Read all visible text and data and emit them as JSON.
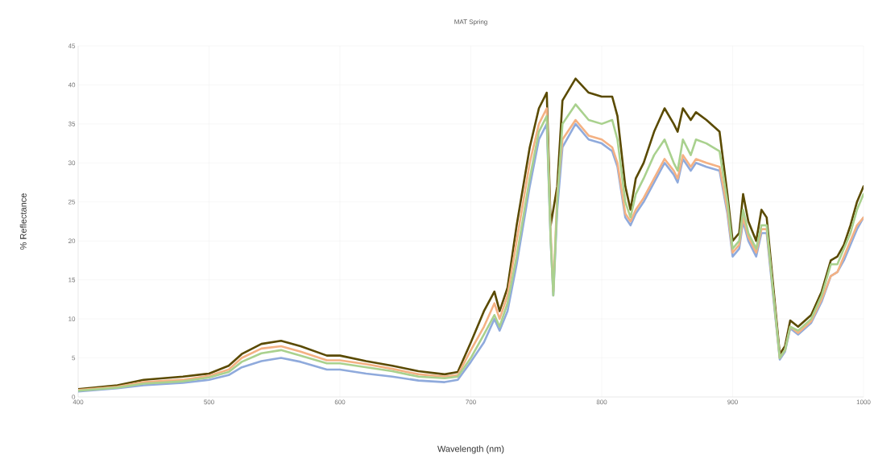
{
  "chart_data": {
    "type": "line",
    "title": "MAT Spring",
    "xlabel": "Wavelength (nm)",
    "ylabel": "% Reflectance",
    "x": [
      400,
      430,
      450,
      480,
      500,
      515,
      525,
      540,
      555,
      570,
      590,
      600,
      620,
      640,
      660,
      680,
      690,
      700,
      710,
      718,
      722,
      728,
      735,
      745,
      752,
      758,
      761,
      763,
      766,
      770,
      780,
      790,
      800,
      808,
      812,
      818,
      822,
      826,
      832,
      840,
      848,
      855,
      858,
      862,
      868,
      872,
      880,
      890,
      896,
      900,
      905,
      908,
      912,
      918,
      922,
      926,
      930,
      936,
      940,
      944,
      950,
      960,
      968,
      975,
      980,
      985,
      990,
      995,
      1000
    ],
    "series": [
      {
        "color": "#5a4a00",
        "values": [
          1.0,
          1.5,
          2.2,
          2.6,
          3.0,
          4.0,
          5.5,
          6.8,
          7.2,
          6.5,
          5.3,
          5.3,
          4.6,
          4.0,
          3.3,
          2.9,
          3.2,
          7,
          11,
          13.5,
          11,
          14,
          22,
          32,
          37,
          39,
          22,
          null,
          27,
          38,
          40.8,
          39,
          38.5,
          38.5,
          36,
          27,
          24,
          28,
          30,
          34,
          37,
          35,
          34,
          37,
          35.5,
          36.5,
          35.5,
          34,
          26,
          20,
          21,
          26,
          22.5,
          20,
          24,
          23,
          16,
          5.5,
          6.5,
          9.8,
          9,
          10.5,
          13.5,
          17.5,
          18,
          19.5,
          22,
          25,
          27
        ]
      },
      {
        "color": "#8faadc",
        "values": [
          0.7,
          1.1,
          1.5,
          1.8,
          2.2,
          2.8,
          3.8,
          4.6,
          5.0,
          4.5,
          3.5,
          3.5,
          3.0,
          2.6,
          2.1,
          1.9,
          2.2,
          4.5,
          7,
          10,
          8.5,
          11,
          17,
          27,
          33,
          35,
          20,
          13,
          24,
          32,
          35,
          33,
          32.5,
          31.5,
          29.5,
          23,
          22,
          23.5,
          25,
          27.5,
          30,
          28.5,
          27.5,
          30.5,
          29,
          30,
          29.5,
          29,
          23.5,
          18,
          19,
          22.5,
          20,
          18,
          21,
          21,
          14.5,
          4.8,
          5.8,
          8.8,
          8,
          9.5,
          12.2,
          15.5,
          16,
          17.5,
          19.5,
          21.5,
          23
        ]
      },
      {
        "color": "#f4b183",
        "values": [
          0.9,
          1.3,
          1.9,
          2.2,
          2.7,
          3.5,
          5.0,
          6.2,
          6.5,
          5.8,
          4.7,
          4.7,
          4.2,
          3.6,
          2.9,
          2.6,
          2.8,
          6,
          9,
          12,
          10,
          13,
          20,
          30,
          35,
          37,
          21,
          13.5,
          26,
          33,
          35.5,
          33.5,
          33,
          32,
          30,
          23.5,
          22.5,
          24,
          25.5,
          28,
          30.5,
          29,
          28,
          31,
          29.5,
          30.5,
          30,
          29.5,
          24,
          18.5,
          19.5,
          23,
          20.5,
          18.5,
          21.5,
          21.5,
          15,
          5,
          6,
          9,
          8.2,
          9.7,
          12.5,
          15.5,
          16,
          18,
          20,
          22,
          23
        ]
      },
      {
        "color": "#a9d18e",
        "values": [
          0.8,
          1.2,
          1.7,
          2.0,
          2.5,
          3.2,
          4.5,
          5.6,
          6.0,
          5.3,
          4.3,
          4.3,
          3.8,
          3.3,
          2.6,
          2.4,
          2.6,
          5,
          8,
          10.5,
          9,
          12,
          18,
          28,
          34,
          36,
          20,
          13,
          25,
          35,
          37.5,
          35.5,
          35,
          35.5,
          33,
          25,
          23,
          26,
          28,
          31,
          33,
          30,
          29,
          33,
          31,
          33,
          32.5,
          31.5,
          25,
          19,
          20,
          24,
          21,
          19,
          22,
          22,
          15,
          5,
          6,
          9,
          8.5,
          10,
          13,
          17,
          17,
          19,
          21,
          24,
          26
        ]
      }
    ],
    "xlim": [
      400,
      1000
    ],
    "xticks": [
      400,
      500,
      600,
      700,
      800,
      900,
      1000
    ],
    "ylim": [
      0,
      45
    ],
    "yticks": [
      0,
      5,
      10,
      15,
      20,
      25,
      30,
      35,
      40,
      45
    ],
    "grid": true,
    "marker": "none",
    "line_style": "solid"
  }
}
